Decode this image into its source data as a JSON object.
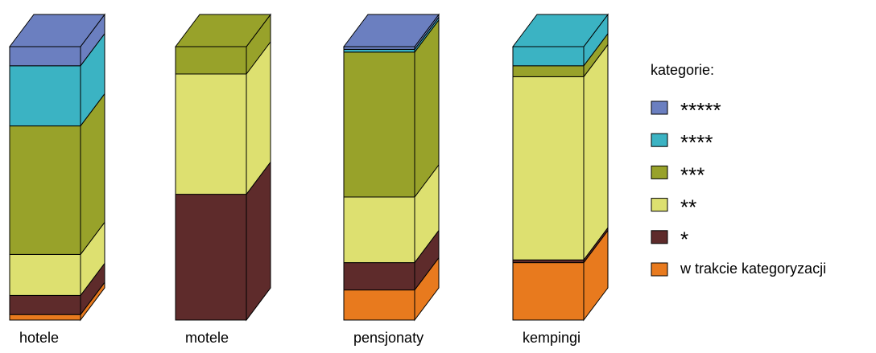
{
  "chart_data": {
    "type": "bar3d_stacked",
    "categories": [
      "hotele",
      "motele",
      "pensjonaty",
      "kempingi"
    ],
    "legend_title": "kategorie:",
    "series": [
      {
        "name": "*****",
        "color": "#6b7fc0",
        "values": [
          7,
          0,
          1,
          0
        ]
      },
      {
        "name": "****",
        "color": "#3bb3c3",
        "values": [
          22,
          0,
          1,
          7
        ]
      },
      {
        "name": "***",
        "color": "#98a22a",
        "values": [
          47,
          10,
          53,
          4
        ]
      },
      {
        "name": "**",
        "color": "#dde070",
        "values": [
          15,
          44,
          24,
          67
        ]
      },
      {
        "name": "*",
        "color": "#5e2b2b",
        "values": [
          7,
          46,
          10,
          1
        ]
      },
      {
        "name": "w trakcie kategoryzacji",
        "color": "#e87a1e",
        "values": [
          2,
          0,
          11,
          21
        ]
      }
    ]
  }
}
